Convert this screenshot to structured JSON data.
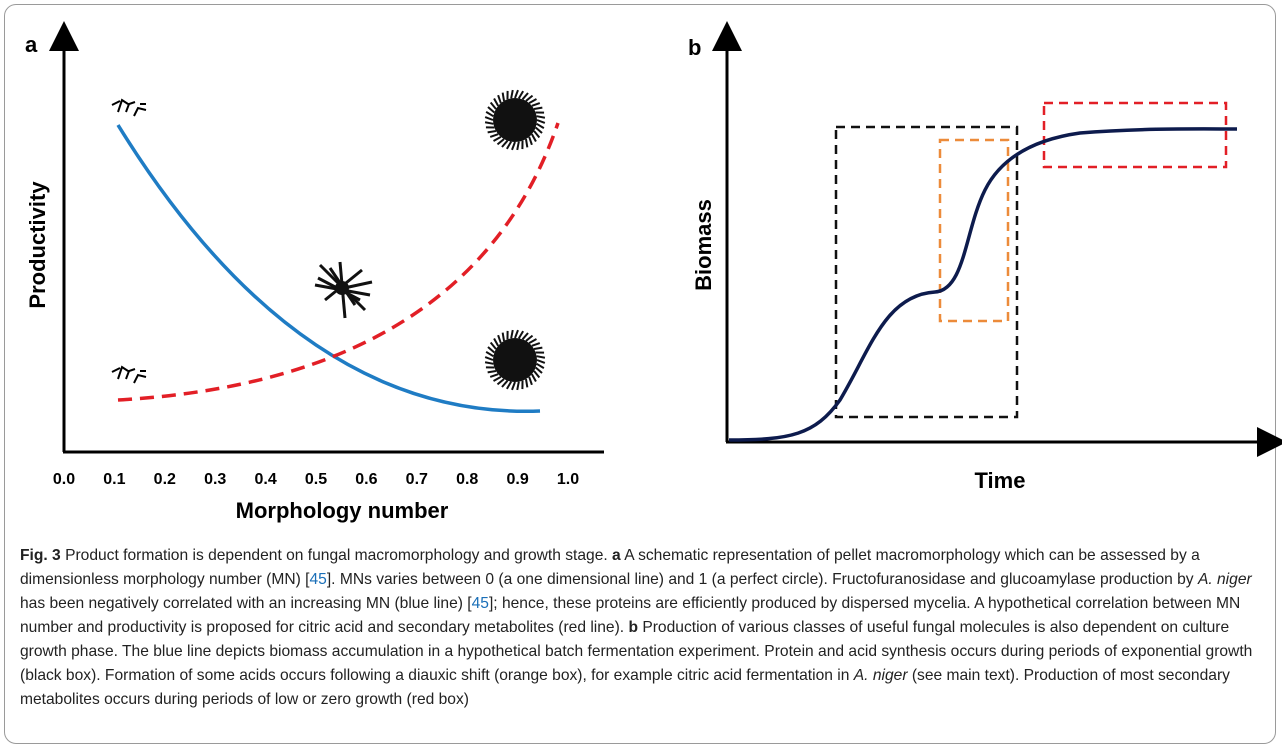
{
  "figure": {
    "panels": [
      {
        "label": "a",
        "x_label": "Morphology number",
        "y_label": "Productivity",
        "x_ticks": [
          "0.0",
          "0.1",
          "0.2",
          "0.3",
          "0.4",
          "0.5",
          "0.6",
          "0.7",
          "0.8",
          "0.9",
          "1.0"
        ]
      },
      {
        "label": "b",
        "x_label": "Time",
        "y_label": "Biomass"
      }
    ],
    "caption": [
      "Fig. 3",
      "  Product formation is dependent on fungal macromorphology and growth stage. ",
      "a",
      " A schematic representation of pellet macromorphology which can be assessed by a dimensionless morphology number (MN) [",
      "45",
      "]. MNs varies between 0 (a one dimensional line) and 1 (a perfect circle). Fructofuranosidase and glucoamylase production by ",
      "A. niger",
      " has been negatively correlated with an increasing MN (blue line) [",
      "45",
      "]; hence, these proteins are efficiently produced by dispersed mycelia. A hypothetical correlation between MN number and productivity is proposed for citric acid and secondary metabolites (red line). ",
      "b",
      " Production of various classes of useful fungal molecules is also dependent on culture growth phase. The blue line depicts biomass accumulation in a hypothetical batch fermentation experiment. Protein and acid synthesis occurs during periods of exponential growth (black box). Formation of some acids occurs following a diauxic shift (orange box), for example citric acid fermentation in ",
      "A. niger",
      " (see main text). Production of most secondary metabolites occurs during periods of low or zero growth (red box)"
    ]
  }
}
